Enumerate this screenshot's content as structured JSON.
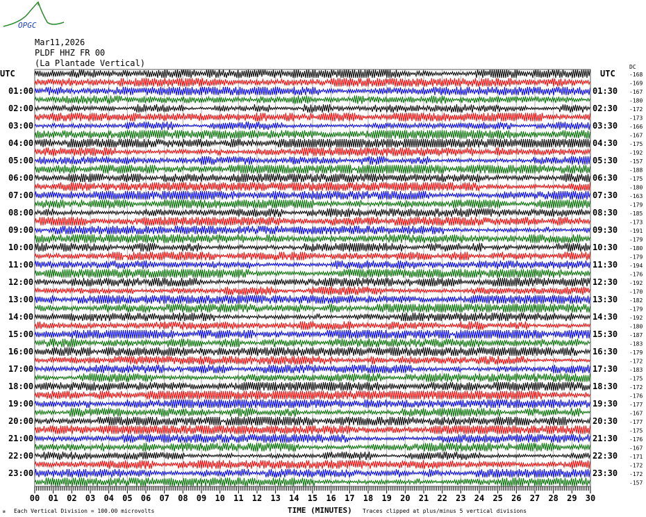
{
  "logo_text": "OPGC",
  "header": {
    "date": "Mar11,2026",
    "station": "PLDF HHZ FR 00",
    "location": "(La Plantade Vertical)"
  },
  "chart_data": {
    "type": "line",
    "title": "",
    "xlabel": "TIME (MINUTES)",
    "xlim": [
      0,
      30
    ],
    "x_ticks": [
      "00",
      "01",
      "02",
      "03",
      "04",
      "05",
      "06",
      "07",
      "08",
      "09",
      "10",
      "11",
      "12",
      "13",
      "14",
      "15",
      "16",
      "17",
      "18",
      "19",
      "20",
      "21",
      "22",
      "23",
      "24",
      "25",
      "26",
      "27",
      "28",
      "29",
      "30"
    ],
    "left_axis_title": "UTC",
    "right_axis_title": "UTC",
    "left_labels": [
      "01:00",
      "02:00",
      "03:00",
      "04:00",
      "05:00",
      "06:00",
      "07:00",
      "08:00",
      "09:00",
      "10:00",
      "11:00",
      "12:00",
      "13:00",
      "14:00",
      "15:00",
      "16:00",
      "17:00",
      "18:00",
      "19:00",
      "20:00",
      "21:00",
      "22:00",
      "23:00"
    ],
    "right_labels": [
      "01:30",
      "02:30",
      "03:30",
      "04:30",
      "05:30",
      "06:30",
      "07:30",
      "08:30",
      "09:30",
      "10:30",
      "11:30",
      "12:30",
      "13:30",
      "14:30",
      "15:30",
      "16:30",
      "17:30",
      "18:30",
      "19:30",
      "20:30",
      "21:30",
      "22:30",
      "23:30"
    ],
    "dc_label": "DC",
    "dc_offsets": [
      -168,
      -169,
      -167,
      -180,
      -172,
      -173,
      -166,
      -167,
      -175,
      -192,
      -157,
      -188,
      -175,
      -180,
      -163,
      -179,
      -185,
      -173,
      -191,
      -179,
      -180,
      -179,
      -194,
      -176,
      -192,
      -170,
      -182,
      -179,
      -192,
      -180,
      -187,
      -183,
      -179,
      -172,
      -183,
      -175,
      -172,
      -176,
      -177,
      -167,
      -177,
      -175,
      -176,
      -167,
      -171,
      -172,
      -172,
      -157
    ],
    "trace_colors": [
      "#000000",
      "#ff0000",
      "#0000ff",
      "#007000"
    ],
    "trace_minutes_each": 30,
    "trace_count": 48
  },
  "footer": {
    "scale_note": "Each Vertical Division =  100.00 microvolts",
    "clip_note": "Traces clipped at plus/minus 5 vertical divisions"
  }
}
